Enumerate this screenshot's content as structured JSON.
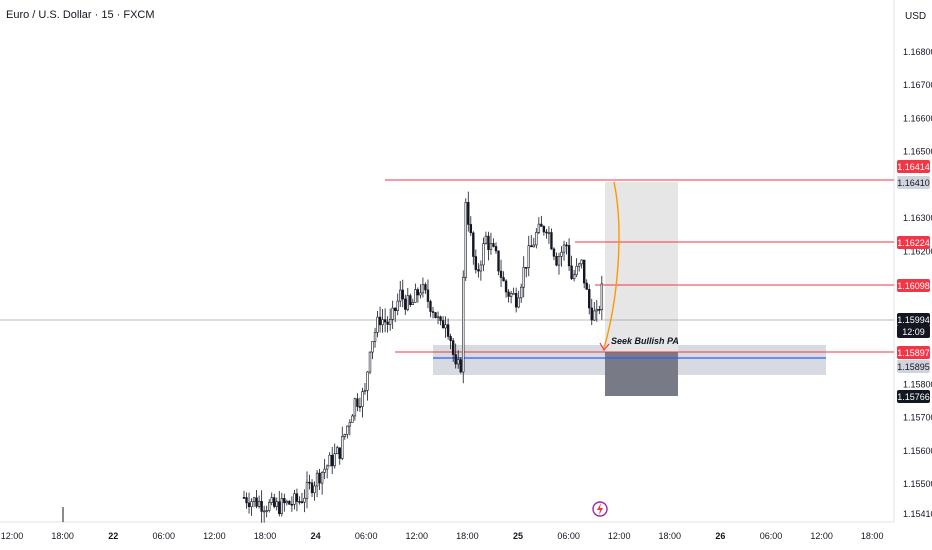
{
  "header": {
    "title": "Euro / U.S. Dollar · 15 · FXCM",
    "currency": "USD"
  },
  "colors": {
    "red": "#f23645",
    "blue": "#2962ff",
    "orange": "#ff9800",
    "candle": "#131722",
    "label_dark": "#131722",
    "label_gray": "#5d606b",
    "zone_gray": "#d1d4dc",
    "box_light": "#e6e6e6",
    "box_dark": "#787b86",
    "brand_purple": "#9c27b0"
  },
  "chart_data": {
    "type": "candlestick",
    "symbol": "Euro / U.S. Dollar",
    "interval": "15",
    "source": "FXCM",
    "y_axis": {
      "ticks": [
        "1.16800",
        "1.16700",
        "1.16600",
        "1.16500",
        "1.16300",
        "1.16200",
        "1.15800",
        "1.15700",
        "1.15600",
        "1.15500",
        "1.15410"
      ],
      "range": [
        1.1541,
        1.1689
      ]
    },
    "x_axis": {
      "ticks": [
        "12:00",
        "18:00",
        "22",
        "06:00",
        "12:00",
        "18:00",
        "24",
        "06:00",
        "12:00",
        "18:00",
        "25",
        "06:00",
        "12:00",
        "18:00",
        "26",
        "06:00",
        "12:00",
        "18:00"
      ]
    },
    "path_points": [
      [
        0,
        1.1546
      ],
      [
        12,
        1.1543
      ],
      [
        22,
        1.1545
      ],
      [
        30,
        1.1553
      ],
      [
        38,
        1.156
      ],
      [
        44,
        1.1575
      ],
      [
        48,
        1.1577
      ],
      [
        50,
        1.1592
      ],
      [
        54,
        1.16
      ],
      [
        58,
        1.1598
      ],
      [
        62,
        1.1607
      ],
      [
        66,
        1.1603
      ],
      [
        70,
        1.1609
      ],
      [
        75,
        1.1603
      ],
      [
        78,
        1.1597
      ],
      [
        80,
        1.16
      ],
      [
        82,
        1.1594
      ],
      [
        84,
        1.1584
      ],
      [
        86,
        1.1586
      ],
      [
        88,
        1.1636
      ],
      [
        92,
        1.1612
      ],
      [
        96,
        1.1624
      ],
      [
        100,
        1.1618
      ],
      [
        104,
        1.1608
      ],
      [
        108,
        1.1606
      ],
      [
        112,
        1.1617
      ],
      [
        116,
        1.1625
      ],
      [
        120,
        1.1628
      ],
      [
        124,
        1.1618
      ],
      [
        128,
        1.1622
      ],
      [
        130,
        1.1612
      ],
      [
        134,
        1.1616
      ],
      [
        137,
        1.1603
      ],
      [
        140,
        1.16
      ],
      [
        142,
        1.1608
      ]
    ],
    "levels": [
      {
        "price": "1.16414",
        "style": "red-line"
      },
      {
        "price": "1.16224",
        "style": "red-line"
      },
      {
        "price": "1.16098",
        "style": "red-line"
      },
      {
        "price": "1.15897",
        "style": "red-line"
      },
      {
        "price": "1.15895",
        "style": "blue-line"
      }
    ],
    "price_labels": [
      {
        "text": "1.16414",
        "style": "red"
      },
      {
        "text": "1.16410",
        "style": "gray"
      },
      {
        "text": "1.16224",
        "style": "red"
      },
      {
        "text": "1.16098",
        "style": "red"
      },
      {
        "text": "1.15994",
        "style": "dark"
      },
      {
        "text": "12:09",
        "style": "dark"
      },
      {
        "text": "1.15897",
        "style": "red"
      },
      {
        "text": "1.15895",
        "style": "gray"
      },
      {
        "text": "1.15766",
        "style": "dark"
      }
    ],
    "current_price": "1.15994",
    "countdown": "12:09",
    "annotation": "Seek Bullish PA",
    "grid": false
  }
}
